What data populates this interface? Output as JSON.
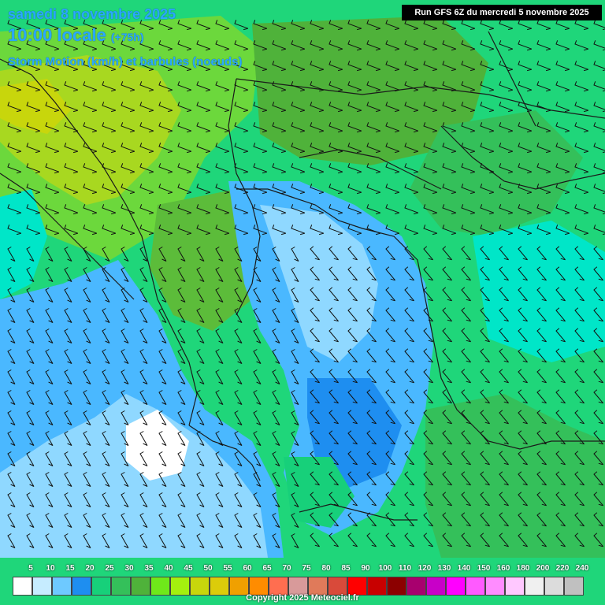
{
  "header": {
    "title_line1": "samedi 8 novembre 2025",
    "title_line2": "10:00 locale",
    "title_offset": "(+75h)",
    "title_line3": "Storm Motion (km/h) et barbules (noeuds)",
    "run_info": "Run GFS 6Z du mercredi 5 novembre 2025"
  },
  "legend": {
    "values": [
      "5",
      "10",
      "15",
      "20",
      "25",
      "30",
      "35",
      "40",
      "45",
      "50",
      "55",
      "60",
      "65",
      "70",
      "75",
      "80",
      "85",
      "90",
      "100",
      "110",
      "120",
      "130",
      "140",
      "150",
      "160",
      "180",
      "200",
      "220",
      "240"
    ],
    "colors": [
      "#ffffff",
      "#c6ecff",
      "#6ec9ff",
      "#1e8ef0",
      "#17d07a",
      "#34c05a",
      "#4fb23a",
      "#6fe81a",
      "#a4f00e",
      "#c8d60c",
      "#dccc0a",
      "#f0a000",
      "#ff8c00",
      "#ff6e50",
      "#d89a9a",
      "#e07a5a",
      "#d94a3a",
      "#ff0000",
      "#c80000",
      "#8c0000",
      "#a8006e",
      "#c800c8",
      "#ff00ff",
      "#ff5aff",
      "#ff8cff",
      "#ffc8ff",
      "#f0f0f0",
      "#dcdcdc",
      "#c0c0c0"
    ]
  },
  "copyright": "Copyright 2025 Meteociel.fr",
  "map_colors": {
    "base_green": "#1fd67a",
    "light_green": "#6cd83c",
    "yellow_green": "#a8d820",
    "cyan": "#00e6c8",
    "light_blue": "#4ab8ff",
    "sky_blue": "#8fd8ff",
    "blue": "#1e8ef0",
    "white_area": "#ffffff",
    "border": "#1a1a1a"
  }
}
